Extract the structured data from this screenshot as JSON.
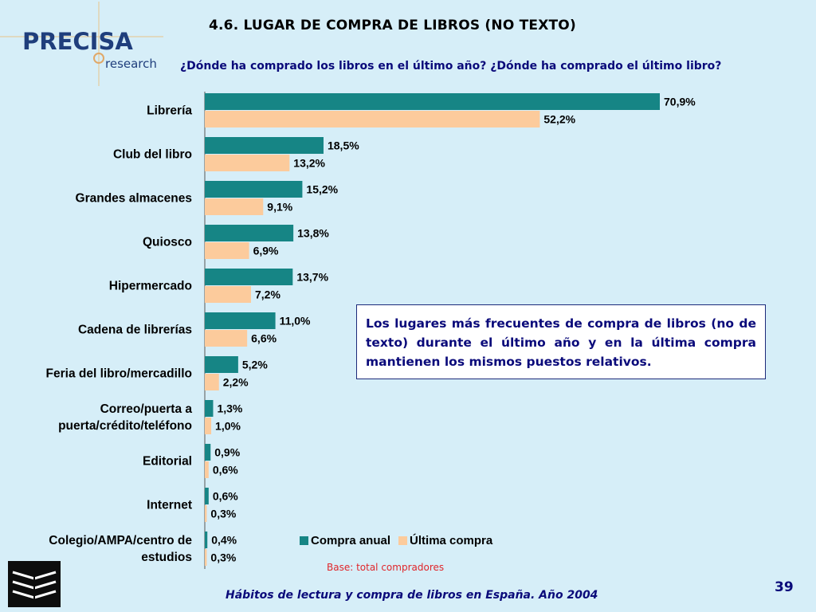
{
  "header": {
    "title": "4.6. LUGAR DE COMPRA DE LIBROS (NO TEXTO)",
    "subtitle": "¿Dónde ha comprado los libros en el último año? ¿Dónde ha comprado el último libro?"
  },
  "logo": {
    "brand": "PRECISA",
    "sub": "research"
  },
  "annotation": "Los lugares más frecuentes de compra de libros (no de texto) durante el último año y en la última compra mantienen los mismos puestos relativos.",
  "base_note": "Base: total compradores",
  "footer": "Hábitos de lectura y compra de libros en España. Año 2004",
  "page_number": "39",
  "colors": {
    "annual": "#168585",
    "last": "#fccb9c",
    "background": "#d6eef8",
    "text_blue": "#0a0a7a"
  },
  "chart_data": {
    "type": "bar",
    "orientation": "horizontal",
    "categories": [
      "Librería",
      "Club del libro",
      "Grandes almacenes",
      "Quiosco",
      "Hipermercado",
      "Cadena de librerías",
      "Feria del libro/mercadillo",
      "Correo/puerta a puerta/crédito/teléfono",
      "Editorial",
      "Internet",
      "Colegio/AMPA/centro de estudios"
    ],
    "category_lines": [
      [
        "Librería"
      ],
      [
        "Club del libro"
      ],
      [
        "Grandes almacenes"
      ],
      [
        "Quiosco"
      ],
      [
        "Hipermercado"
      ],
      [
        "Cadena de librerías"
      ],
      [
        "Feria del libro/mercadillo"
      ],
      [
        "Correo/puerta a",
        "puerta/crédito/teléfono"
      ],
      [
        "Editorial"
      ],
      [
        "Internet"
      ],
      [
        "Colegio/AMPA/centro de",
        "estudios"
      ]
    ],
    "series": [
      {
        "name": "Compra anual",
        "values": [
          70.9,
          18.5,
          15.2,
          13.8,
          13.7,
          11.0,
          5.2,
          1.3,
          0.9,
          0.6,
          0.4
        ],
        "labels": [
          "70,9%",
          "18,5%",
          "15,2%",
          "13,8%",
          "13,7%",
          "11,0%",
          "5,2%",
          "1,3%",
          "0,9%",
          "0,6%",
          "0,4%"
        ]
      },
      {
        "name": "Última compra",
        "values": [
          52.2,
          13.2,
          9.1,
          6.9,
          7.2,
          6.6,
          2.2,
          1.0,
          0.6,
          0.3,
          0.3
        ],
        "labels": [
          "52,2%",
          "13,2%",
          "9,1%",
          "6,9%",
          "7,2%",
          "6,6%",
          "2,2%",
          "1,0%",
          "0,6%",
          "0,3%",
          "0,3%"
        ]
      }
    ],
    "unit": "%",
    "xlim": [
      0,
      72
    ],
    "legend_position": "bottom",
    "grid": false
  }
}
